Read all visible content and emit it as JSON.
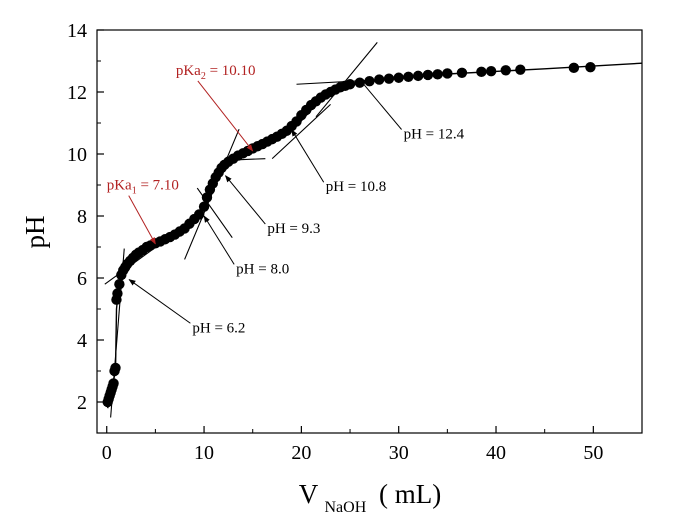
{
  "chart_data": {
    "type": "scatter",
    "xlabel": "V",
    "xlabel_sub": "NaOH",
    "xlabel_units": "(  mL)",
    "ylabel": "pH",
    "xlim": [
      -1,
      55
    ],
    "ylim": [
      1,
      14
    ],
    "xticks": [
      0,
      10,
      20,
      30,
      40,
      50
    ],
    "yticks": [
      2,
      4,
      6,
      8,
      10,
      12,
      14
    ],
    "legend": "none",
    "grid": false,
    "marker_color": "#000000",
    "series": [
      {
        "x": [
          0.1,
          0.2,
          0.3,
          0.4,
          0.5,
          0.6,
          0.7,
          0.8,
          0.9,
          1.0,
          1.1,
          1.3,
          1.5,
          1.7,
          1.9,
          2.1,
          2.4,
          2.7,
          3.0,
          3.3,
          3.7,
          4.1,
          4.5,
          5.0,
          5.5,
          6.0,
          6.5,
          7.0,
          7.5,
          8.0,
          8.5,
          9.0,
          9.5,
          10.0,
          10.3,
          10.6,
          10.9,
          11.2,
          11.5,
          11.8,
          12.1,
          12.5,
          13.0,
          13.5,
          14.0,
          14.5,
          15.0,
          15.5,
          16.0,
          16.5,
          17.0,
          17.5,
          18.0,
          18.5,
          19.0,
          19.5,
          20.0,
          20.5,
          21.0,
          21.5,
          22.0,
          22.5,
          23.0,
          23.5,
          24.0,
          24.5,
          25.0,
          26.0,
          27.0,
          28.0,
          29.0,
          30.0,
          31.0,
          32.0,
          33.0,
          34.0,
          35.0,
          36.5,
          38.5,
          39.5,
          41.0,
          42.5,
          48.0,
          49.7
        ],
        "y": [
          2.0,
          2.1,
          2.2,
          2.3,
          2.4,
          2.5,
          2.6,
          3.0,
          3.1,
          5.3,
          5.5,
          5.8,
          6.1,
          6.25,
          6.35,
          6.45,
          6.55,
          6.65,
          6.75,
          6.82,
          6.9,
          7.0,
          7.05,
          7.12,
          7.18,
          7.25,
          7.32,
          7.4,
          7.5,
          7.6,
          7.75,
          7.9,
          8.05,
          8.3,
          8.6,
          8.85,
          9.05,
          9.25,
          9.4,
          9.55,
          9.65,
          9.75,
          9.85,
          9.95,
          10.02,
          10.1,
          10.18,
          10.25,
          10.32,
          10.4,
          10.48,
          10.56,
          10.65,
          10.75,
          10.9,
          11.05,
          11.25,
          11.42,
          11.58,
          11.7,
          11.82,
          11.92,
          12.0,
          12.08,
          12.15,
          12.2,
          12.25,
          12.3,
          12.35,
          12.4,
          12.43,
          12.46,
          12.49,
          12.52,
          12.55,
          12.57,
          12.6,
          12.62,
          12.65,
          12.67,
          12.7,
          12.72,
          12.78,
          12.8
        ]
      }
    ],
    "fit_curve": {
      "x": [
        0.1,
        0.5,
        0.9,
        1.0,
        1.2,
        1.5,
        2.0,
        3.0,
        4.5,
        6.5,
        8.5,
        9.5,
        10.5,
        11.5,
        12.5,
        14.0,
        16.0,
        18.0,
        19.5,
        21.0,
        22.5,
        24.0,
        26.0,
        30.0,
        35.0,
        45.0,
        55.0
      ],
      "y": [
        1.8,
        2.4,
        3.0,
        5.0,
        5.6,
        6.0,
        6.4,
        6.75,
        7.02,
        7.32,
        7.75,
        8.05,
        8.7,
        9.35,
        9.7,
        10.02,
        10.32,
        10.62,
        10.9,
        11.42,
        11.82,
        12.1,
        12.3,
        12.47,
        12.58,
        12.75,
        12.93
      ]
    },
    "tangent_lines": [
      {
        "x": [
          0.4,
          1.8
        ],
        "y": [
          1.5,
          6.95
        ]
      },
      {
        "x": [
          -0.2,
          5.5
        ],
        "y": [
          5.8,
          7.1
        ]
      },
      {
        "x": [
          8.0,
          13.6
        ],
        "y": [
          6.6,
          10.8
        ]
      },
      {
        "x": [
          9.3,
          12.9
        ],
        "y": [
          8.9,
          7.3
        ]
      },
      {
        "x": [
          12.5,
          16.3
        ],
        "y": [
          9.8,
          9.85
        ]
      },
      {
        "x": [
          17.0,
          23.0
        ],
        "y": [
          9.85,
          11.6
        ]
      },
      {
        "x": [
          21.5,
          27.8
        ],
        "y": [
          11.2,
          13.6
        ]
      },
      {
        "x": [
          19.5,
          31.0
        ],
        "y": [
          12.25,
          12.45
        ]
      }
    ],
    "annotations": [
      {
        "text": "pH = 6.2",
        "x": 8.8,
        "y": 4.25,
        "arrow_to": [
          2.3,
          5.95
        ],
        "color": "#000000"
      },
      {
        "text": "pH = 8.0",
        "x": 13.3,
        "y": 6.15,
        "arrow_to": [
          10.0,
          8.0
        ],
        "color": "#000000"
      },
      {
        "text": "pH = 9.3",
        "x": 16.5,
        "y": 7.45,
        "arrow_to": [
          12.2,
          9.3
        ],
        "color": "#000000"
      },
      {
        "text": "pH = 10.8",
        "x": 22.5,
        "y": 8.8,
        "arrow_to": [
          19.0,
          10.78
        ],
        "color": "#000000"
      },
      {
        "text": "pH = 12.4",
        "x": 30.5,
        "y": 10.5,
        "arrow_to": [
          26.0,
          12.4
        ],
        "color": "#000000"
      },
      {
        "text": "pKa",
        "sub": "1",
        "rest": " = 7.10",
        "x": 0.0,
        "y": 8.85,
        "arrow_to": [
          5.0,
          7.1
        ],
        "color": "#b22222"
      },
      {
        "text": "pKa",
        "sub": "2",
        "rest": " = 10.10",
        "x": 7.1,
        "y": 12.55,
        "arrow_to": [
          15.0,
          10.1
        ],
        "color": "#b22222"
      }
    ]
  }
}
